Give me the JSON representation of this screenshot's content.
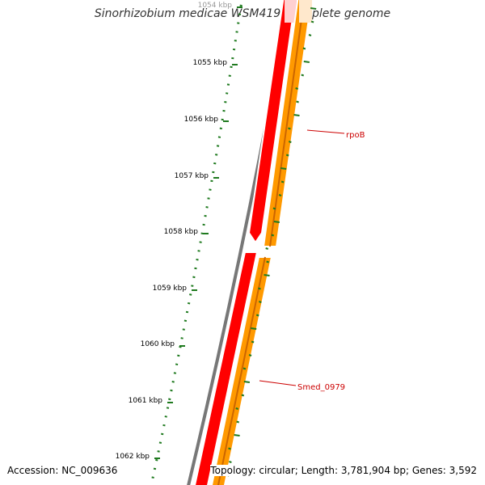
{
  "title": "Sinorhizobium medicae WSM419, complete genome",
  "accession_text": "Accession: NC_009636",
  "summary_text": "Topology: circular; Length: 3,781,904 bp; Genes: 3,592",
  "ticks": [
    {
      "label": "1054 kbp",
      "faded": true
    },
    {
      "label": "1055 kbp"
    },
    {
      "label": "1056 kbp"
    },
    {
      "label": "1057 kbp"
    },
    {
      "label": "1058 kbp"
    },
    {
      "label": "1059 kbp"
    },
    {
      "label": "1060 kbp"
    },
    {
      "label": "1061 kbp"
    },
    {
      "label": "1062 kbp"
    }
  ],
  "features": [
    {
      "name": "rpoB",
      "color": "#cc0000"
    },
    {
      "name": "Smed_0979",
      "color": "#cc0000"
    }
  ],
  "colors": {
    "backbone": "#777777",
    "cds_red": "#ff0000",
    "cds_orange": "#ff9900",
    "gc_skew": "#1f7a1f",
    "label": "#cc0000"
  }
}
